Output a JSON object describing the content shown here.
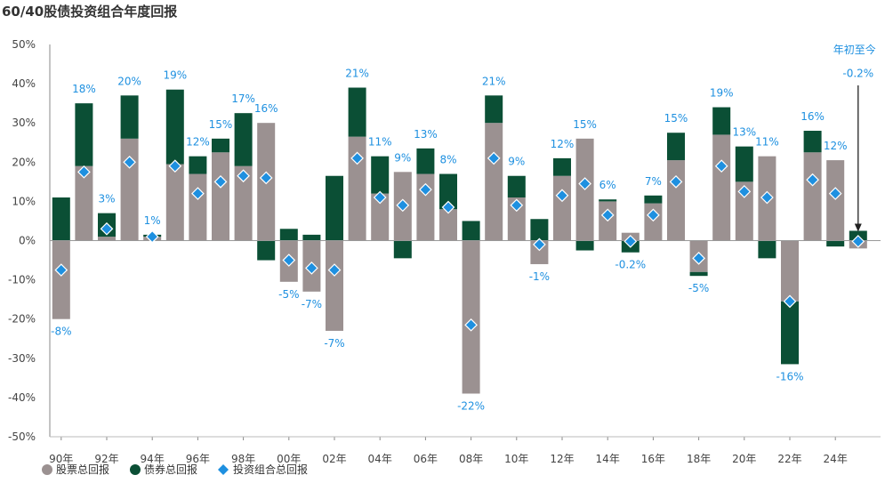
{
  "chart_data": {
    "type": "bar",
    "title": "60/40股债投资组合年度回报",
    "xlabel": "",
    "ylabel": "",
    "ylim": [
      -50,
      50
    ],
    "yticks": [
      "50%",
      "40%",
      "30%",
      "20%",
      "10%",
      "0%",
      "-10%",
      "-20%",
      "-30%",
      "-40%",
      "-50%"
    ],
    "xtick_labels": [
      "90年",
      "92年",
      "94年",
      "96年",
      "98年",
      "00年",
      "02年",
      "04年",
      "06年",
      "08年",
      "10年",
      "12年",
      "14年",
      "16年",
      "18年",
      "20年",
      "22年",
      "24年"
    ],
    "categories": [
      "1990",
      "1991",
      "1992",
      "1993",
      "1994",
      "1995",
      "1996",
      "1997",
      "1998",
      "1999",
      "2000",
      "2001",
      "2002",
      "2003",
      "2004",
      "2005",
      "2006",
      "2007",
      "2008",
      "2009",
      "2010",
      "2011",
      "2012",
      "2013",
      "2014",
      "2015",
      "2016",
      "2017",
      "2018",
      "2019",
      "2020",
      "2021",
      "2022",
      "2023",
      "2024",
      "年初至今"
    ],
    "series": [
      {
        "name": "股票总回报",
        "color": "#9b9191",
        "values": [
          -20,
          19,
          1,
          26,
          1,
          19.5,
          17,
          22.5,
          19,
          30,
          -10.5,
          -13,
          -23,
          26.5,
          12,
          17.5,
          17,
          8,
          -39,
          30,
          11,
          -6,
          16.5,
          26,
          10,
          2,
          9.5,
          20.5,
          -8,
          27,
          15,
          21.5,
          -15.5,
          22.5,
          20.5,
          -2
        ]
      },
      {
        "name": "债券总回报",
        "color": "#0b4f35",
        "values": [
          11,
          16,
          6,
          11,
          0.5,
          19,
          4.5,
          3.5,
          13.5,
          -5,
          3,
          1.5,
          16.5,
          12.5,
          9.5,
          -4.5,
          6.5,
          9,
          5,
          7,
          5.5,
          5.5,
          4.5,
          -2.5,
          0.5,
          -3,
          2,
          7,
          -1,
          7,
          9,
          -4.5,
          -16,
          5.5,
          -1.5,
          2.5
        ]
      },
      {
        "name": "投资组合总回报",
        "color": "#1e90e0",
        "values": [
          -7.5,
          17.5,
          3,
          20,
          1,
          19,
          12,
          15,
          16.5,
          16,
          -5,
          -7,
          -7.5,
          21,
          11,
          9,
          13,
          8.5,
          -21.5,
          21,
          9,
          -1,
          11.5,
          14.5,
          6.5,
          -0.2,
          6.5,
          15,
          -4.5,
          19,
          12.5,
          11,
          -15.5,
          15.5,
          12,
          -0.2
        ]
      }
    ],
    "data_labels": [
      {
        "index": 0,
        "text": "-8%"
      },
      {
        "index": 1,
        "text": "18%"
      },
      {
        "index": 2,
        "text": "3%"
      },
      {
        "index": 3,
        "text": "20%"
      },
      {
        "index": 4,
        "text": "1%"
      },
      {
        "index": 5,
        "text": "19%"
      },
      {
        "index": 6,
        "text": "12%"
      },
      {
        "index": 7,
        "text": "15%"
      },
      {
        "index": 8,
        "text": "17%"
      },
      {
        "index": 9,
        "text": "16%"
      },
      {
        "index": 10,
        "text": "-5%"
      },
      {
        "index": 11,
        "text": "-7%"
      },
      {
        "index": 12,
        "text": "-7%"
      },
      {
        "index": 13,
        "text": "21%"
      },
      {
        "index": 14,
        "text": "11%"
      },
      {
        "index": 15,
        "text": "9%"
      },
      {
        "index": 16,
        "text": "13%"
      },
      {
        "index": 17,
        "text": "8%"
      },
      {
        "index": 18,
        "text": "-22%"
      },
      {
        "index": 19,
        "text": "21%"
      },
      {
        "index": 20,
        "text": "9%"
      },
      {
        "index": 21,
        "text": "-1%"
      },
      {
        "index": 22,
        "text": "12%"
      },
      {
        "index": 23,
        "text": "15%"
      },
      {
        "index": 24,
        "text": "6%"
      },
      {
        "index": 25,
        "text": "-0.2%"
      },
      {
        "index": 26,
        "text": "7%"
      },
      {
        "index": 27,
        "text": "15%"
      },
      {
        "index": 28,
        "text": "-5%"
      },
      {
        "index": 29,
        "text": "19%"
      },
      {
        "index": 30,
        "text": "13%"
      },
      {
        "index": 31,
        "text": "11%"
      },
      {
        "index": 32,
        "text": "-16%"
      },
      {
        "index": 33,
        "text": "16%"
      },
      {
        "index": 34,
        "text": "12%"
      },
      {
        "index": 35,
        "text": "-0.2%"
      }
    ],
    "annotation": "年初至今",
    "legend": [
      "股票总回报",
      "债券总回报",
      "投资组合总回报"
    ],
    "legend_position": "bottom-left",
    "grid": false
  }
}
